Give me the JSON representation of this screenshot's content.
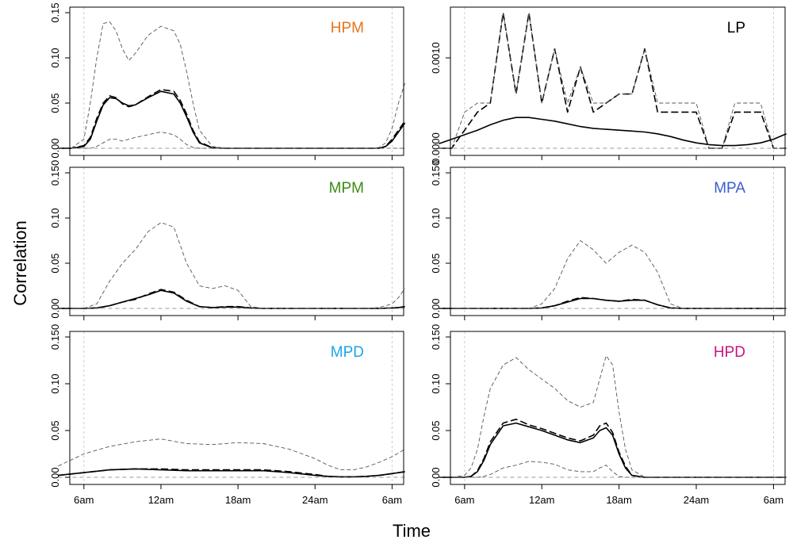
{
  "figure": {
    "xlabel": "Time",
    "ylabel": "Correlation"
  },
  "colors": {
    "HPM": "#e8731a",
    "LP": "#000000",
    "MPM": "#3f8a16",
    "MPA": "#3a5fcd",
    "MPD": "#1aa7e8",
    "HPD": "#c8147e"
  },
  "chart_data": [
    {
      "type": "line",
      "title": "HPM",
      "ylim": [
        0,
        0.15
      ],
      "yticks": [
        "0.00",
        "0.05",
        "0.10",
        "0.15"
      ],
      "xticks": [
        "6am",
        "12am",
        "18am",
        "24am",
        "6am"
      ],
      "x": [
        4,
        5,
        6,
        6.5,
        7,
        7.5,
        8,
        8.5,
        9,
        9.5,
        10,
        11,
        12,
        13,
        13.5,
        14,
        14.5,
        15,
        16,
        17,
        18,
        20,
        24,
        28,
        29,
        29.5,
        30,
        30.5,
        31
      ],
      "series": [
        {
          "name": "smooth",
          "values": [
            0,
            0,
            0.002,
            0.01,
            0.03,
            0.048,
            0.056,
            0.055,
            0.05,
            0.047,
            0.048,
            0.056,
            0.063,
            0.06,
            0.05,
            0.035,
            0.018,
            0.006,
            0.0005,
            0,
            0,
            0,
            0,
            0,
            0,
            0.002,
            0.008,
            0.018,
            0.028
          ]
        },
        {
          "name": "mean",
          "values": [
            0,
            0,
            0.003,
            0.012,
            0.033,
            0.05,
            0.058,
            0.056,
            0.049,
            0.046,
            0.048,
            0.057,
            0.065,
            0.063,
            0.053,
            0.038,
            0.02,
            0.007,
            0.0005,
            0,
            0,
            0,
            0,
            0,
            0,
            0.002,
            0.01,
            0.02,
            0.03
          ]
        },
        {
          "name": "upper",
          "values": [
            0,
            0,
            0.01,
            0.05,
            0.1,
            0.138,
            0.14,
            0.13,
            0.11,
            0.097,
            0.105,
            0.125,
            0.135,
            0.13,
            0.115,
            0.085,
            0.05,
            0.02,
            0.002,
            0,
            0,
            0,
            0,
            0,
            0.001,
            0.006,
            0.022,
            0.05,
            0.072
          ]
        },
        {
          "name": "lower",
          "values": [
            0,
            0,
            0,
            0,
            0.002,
            0.006,
            0.01,
            0.01,
            0.008,
            0.01,
            0.012,
            0.015,
            0.018,
            0.015,
            0.01,
            0.004,
            0.001,
            0,
            0,
            0,
            0,
            0,
            0,
            0,
            0,
            0,
            0,
            0,
            0
          ]
        },
        {
          "name": "zero",
          "values": [
            0,
            0,
            0,
            0,
            0,
            0,
            0,
            0,
            0,
            0,
            0,
            0,
            0,
            0,
            0,
            0,
            0,
            0,
            0,
            0,
            0,
            0,
            0,
            0,
            0,
            0,
            0,
            0,
            0
          ]
        }
      ]
    },
    {
      "type": "line",
      "title": "LP",
      "ylim": [
        0,
        0.0015
      ],
      "yticks": [
        "0.0000",
        "0.0010"
      ],
      "xticks": [
        "6am",
        "12am",
        "18am",
        "24am",
        "6am"
      ],
      "x": [
        4,
        5,
        6,
        7,
        8,
        9,
        10,
        11,
        12,
        13,
        14,
        15,
        16,
        17,
        18,
        19,
        20,
        21,
        22,
        23,
        24,
        25,
        26,
        27,
        28,
        29,
        30,
        31
      ],
      "series": [
        {
          "name": "smooth",
          "values": [
            5e-05,
            0.0001,
            0.00015,
            0.0002,
            0.00026,
            0.00031,
            0.00034,
            0.00034,
            0.00032,
            0.0003,
            0.00027,
            0.00024,
            0.00022,
            0.00021,
            0.0002,
            0.00019,
            0.00018,
            0.00016,
            0.00013,
            9e-05,
            6e-05,
            4e-05,
            3e-05,
            3e-05,
            4e-05,
            6e-05,
            0.0001,
            0.00016
          ]
        },
        {
          "name": "mean",
          "values": [
            0,
            0,
            0.0002,
            0.0004,
            0.0005,
            0.0015,
            0.0006,
            0.0015,
            0.0005,
            0.0011,
            0.0004,
            0.0009,
            0.0004,
            0.0005,
            0.0006,
            0.0006,
            0.0011,
            0.0004,
            0.0004,
            0.0004,
            0.0004,
            0,
            0,
            0.0004,
            0.0004,
            0.0004,
            0,
            0
          ]
        },
        {
          "name": "upper",
          "values": [
            0,
            0,
            0.0004,
            0.0005,
            0.0005,
            0.0015,
            0.0006,
            0.0015,
            0.0005,
            0.0011,
            0.0005,
            0.0009,
            0.0005,
            0.0005,
            0.0006,
            0.0006,
            0.0011,
            0.0005,
            0.0005,
            0.0005,
            0.0005,
            0,
            0,
            0.0005,
            0.0005,
            0.0005,
            0,
            0
          ]
        },
        {
          "name": "zero",
          "values": [
            0,
            0,
            0,
            0,
            0,
            0,
            0,
            0,
            0,
            0,
            0,
            0,
            0,
            0,
            0,
            0,
            0,
            0,
            0,
            0,
            0,
            0,
            0,
            0,
            0,
            0,
            0,
            0
          ]
        }
      ]
    },
    {
      "type": "line",
      "title": "MPM",
      "ylim": [
        0,
        0.15
      ],
      "yticks": [
        "0.00",
        "0.05",
        "0.10",
        "0.150"
      ],
      "xticks": [
        "6am",
        "12am",
        "18am",
        "24am",
        "6am"
      ],
      "x": [
        4,
        5,
        6,
        7,
        8,
        9,
        10,
        11,
        12,
        13,
        14,
        15,
        16,
        17,
        18,
        19,
        20,
        22,
        24,
        26,
        28,
        29,
        30,
        30.5,
        31
      ],
      "series": [
        {
          "name": "smooth",
          "values": [
            0,
            0,
            0,
            0.0005,
            0.003,
            0.007,
            0.011,
            0.015,
            0.02,
            0.017,
            0.008,
            0.002,
            0.001,
            0.0015,
            0.0015,
            0.0005,
            0,
            0,
            0,
            0,
            0,
            0,
            0.0005,
            0.001,
            0.002
          ]
        },
        {
          "name": "mean",
          "values": [
            0,
            0,
            0,
            0.0005,
            0.003,
            0.007,
            0.01,
            0.016,
            0.021,
            0.018,
            0.009,
            0.002,
            0.001,
            0.002,
            0.002,
            0.0005,
            0,
            0,
            0,
            0,
            0,
            0,
            0.0005,
            0.001,
            0.002
          ]
        },
        {
          "name": "upper",
          "values": [
            0,
            0,
            0,
            0.005,
            0.03,
            0.05,
            0.065,
            0.085,
            0.095,
            0.09,
            0.05,
            0.025,
            0.022,
            0.025,
            0.02,
            0.002,
            0,
            0,
            0,
            0,
            0,
            0.001,
            0.005,
            0.012,
            0.022
          ]
        },
        {
          "name": "zero",
          "values": [
            0,
            0,
            0,
            0,
            0,
            0,
            0,
            0,
            0,
            0,
            0,
            0,
            0,
            0,
            0,
            0,
            0,
            0,
            0,
            0,
            0,
            0,
            0,
            0,
            0
          ]
        }
      ]
    },
    {
      "type": "line",
      "title": "MPA",
      "ylim": [
        0,
        0.15
      ],
      "yticks": [
        "0.00",
        "0.05",
        "0.10",
        "0.150"
      ],
      "xticks": [
        "6am",
        "12am",
        "18am",
        "24am",
        "6am"
      ],
      "x": [
        4,
        6,
        8,
        10,
        11,
        12,
        13,
        14,
        15,
        16,
        17,
        18,
        19,
        20,
        21,
        22,
        23,
        24,
        26,
        28,
        30,
        31
      ],
      "series": [
        {
          "name": "smooth",
          "values": [
            0,
            0,
            0,
            0,
            0,
            0.0005,
            0.003,
            0.007,
            0.011,
            0.011,
            0.009,
            0.008,
            0.009,
            0.009,
            0.004,
            0.0005,
            0,
            0,
            0,
            0,
            0,
            0
          ]
        },
        {
          "name": "mean",
          "values": [
            0,
            0,
            0,
            0,
            0,
            0.0005,
            0.003,
            0.008,
            0.012,
            0.011,
            0.009,
            0.008,
            0.01,
            0.009,
            0.004,
            0.0005,
            0,
            0,
            0,
            0,
            0,
            0
          ]
        },
        {
          "name": "upper",
          "values": [
            0,
            0,
            0,
            0,
            0,
            0.005,
            0.022,
            0.055,
            0.075,
            0.065,
            0.05,
            0.062,
            0.07,
            0.062,
            0.04,
            0.005,
            0,
            0,
            0,
            0,
            0,
            0
          ]
        },
        {
          "name": "zero",
          "values": [
            0,
            0,
            0,
            0,
            0,
            0,
            0,
            0,
            0,
            0,
            0,
            0,
            0,
            0,
            0,
            0,
            0,
            0,
            0,
            0,
            0,
            0
          ]
        }
      ]
    },
    {
      "type": "line",
      "title": "MPD",
      "ylim": [
        0,
        0.15
      ],
      "yticks": [
        "0.00",
        "0.05",
        "0.10",
        "0.150"
      ],
      "xticks": [
        "6am",
        "12am",
        "18am",
        "24am",
        "6am"
      ],
      "x": [
        4,
        6,
        8,
        10,
        12,
        14,
        16,
        18,
        20,
        22,
        24,
        25,
        26,
        27,
        28,
        29,
        30,
        31
      ],
      "series": [
        {
          "name": "smooth",
          "values": [
            0.002,
            0.005,
            0.008,
            0.009,
            0.008,
            0.007,
            0.007,
            0.007,
            0.007,
            0.005,
            0.002,
            0.001,
            0.0005,
            0.0005,
            0.001,
            0.002,
            0.004,
            0.006
          ]
        },
        {
          "name": "mean",
          "values": [
            0.002,
            0.005,
            0.008,
            0.009,
            0.009,
            0.008,
            0.008,
            0.008,
            0.008,
            0.006,
            0.003,
            0.001,
            0.0005,
            0.0005,
            0.001,
            0.002,
            0.004,
            0.006
          ]
        },
        {
          "name": "upper",
          "values": [
            0.012,
            0.025,
            0.033,
            0.038,
            0.041,
            0.036,
            0.035,
            0.037,
            0.036,
            0.03,
            0.02,
            0.013,
            0.008,
            0.008,
            0.011,
            0.016,
            0.022,
            0.03
          ]
        },
        {
          "name": "zero",
          "values": [
            0,
            0,
            0,
            0,
            0,
            0,
            0,
            0,
            0,
            0,
            0,
            0,
            0,
            0,
            0,
            0,
            0,
            0
          ]
        }
      ]
    },
    {
      "type": "line",
      "title": "HPD",
      "ylim": [
        0,
        0.15
      ],
      "yticks": [
        "0.00",
        "0.05",
        "0.10",
        "0.150"
      ],
      "xticks": [
        "6am",
        "12am",
        "18am",
        "24am",
        "6am"
      ],
      "x": [
        4,
        5,
        6,
        6.5,
        7,
        7.5,
        8,
        9,
        10,
        11,
        12,
        13,
        14,
        15,
        16,
        16.5,
        17,
        17.5,
        18,
        18.5,
        19,
        20,
        22,
        24,
        28,
        31
      ],
      "series": [
        {
          "name": "smooth",
          "values": [
            0,
            0,
            0,
            0.001,
            0.006,
            0.018,
            0.035,
            0.055,
            0.058,
            0.054,
            0.05,
            0.045,
            0.04,
            0.037,
            0.042,
            0.05,
            0.053,
            0.045,
            0.025,
            0.01,
            0.002,
            0,
            0,
            0,
            0,
            0
          ]
        },
        {
          "name": "mean",
          "values": [
            0,
            0,
            0,
            0.001,
            0.007,
            0.02,
            0.038,
            0.058,
            0.062,
            0.056,
            0.052,
            0.047,
            0.042,
            0.039,
            0.045,
            0.055,
            0.058,
            0.048,
            0.027,
            0.012,
            0.002,
            0,
            0,
            0,
            0,
            0
          ]
        },
        {
          "name": "upper",
          "values": [
            0,
            0,
            0.002,
            0.01,
            0.03,
            0.065,
            0.095,
            0.12,
            0.128,
            0.115,
            0.105,
            0.095,
            0.082,
            0.075,
            0.08,
            0.105,
            0.13,
            0.12,
            0.07,
            0.03,
            0.008,
            0,
            0,
            0,
            0,
            0
          ]
        },
        {
          "name": "lower",
          "values": [
            0,
            0,
            0,
            0,
            0,
            0.001,
            0.003,
            0.01,
            0.013,
            0.017,
            0.016,
            0.014,
            0.008,
            0.006,
            0.006,
            0.01,
            0.013,
            0.006,
            0.001,
            0,
            0,
            0,
            0,
            0,
            0,
            0
          ]
        },
        {
          "name": "zero",
          "values": [
            0,
            0,
            0,
            0,
            0,
            0,
            0,
            0,
            0,
            0,
            0,
            0,
            0,
            0,
            0,
            0,
            0,
            0,
            0,
            0,
            0,
            0,
            0,
            0,
            0,
            0
          ]
        }
      ]
    }
  ]
}
